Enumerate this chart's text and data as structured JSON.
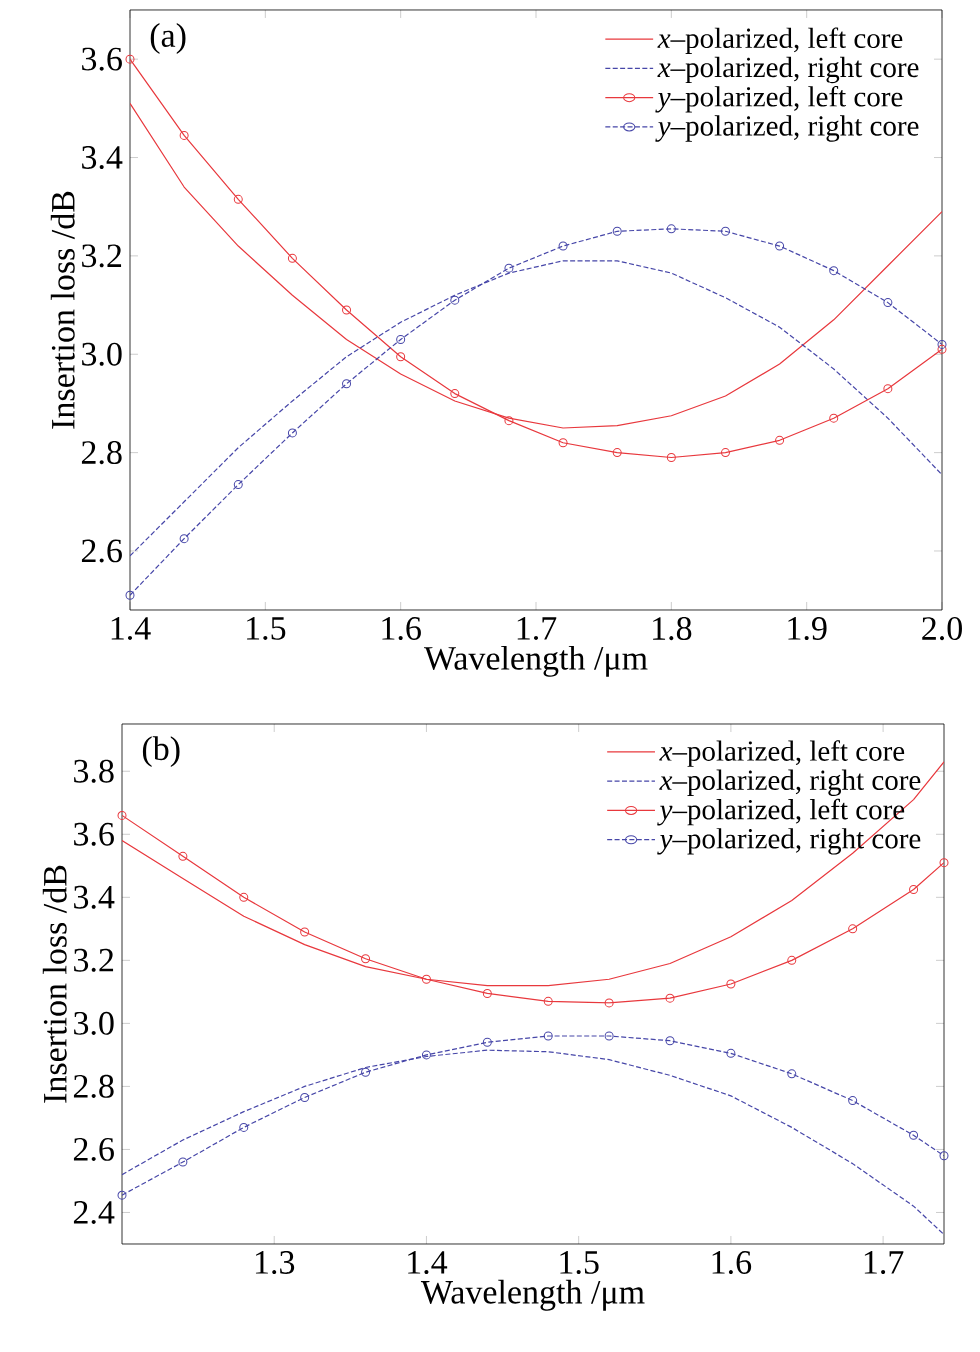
{
  "chart_data": [
    {
      "type": "line",
      "annotations": [
        "(a)"
      ],
      "xlabel": "Wavelength /μm",
      "ylabel": "Insertion loss /dB",
      "xlim": [
        1.4,
        2.0
      ],
      "ylim": [
        2.48,
        3.7
      ],
      "xticks": [
        1.4,
        1.5,
        1.6,
        1.7,
        1.8,
        1.9,
        {
          "value": 2,
          "label": "2.0"
        }
      ],
      "yticks": [
        2.6,
        2.8,
        {
          "value": 3,
          "label": "3.0"
        },
        3.2,
        3.4,
        3.6
      ],
      "legend": "top right",
      "grid": false,
      "x": [
        1.4,
        1.44,
        1.48,
        1.52,
        1.56,
        1.6,
        1.64,
        1.68,
        1.72,
        1.76,
        1.8,
        1.84,
        1.88,
        1.92,
        1.96,
        2.0
      ],
      "series": [
        {
          "name": "*x*–polarized, left core",
          "color": "#e8383d",
          "marker": "none",
          "line_style": "solid",
          "values": [
            3.51,
            3.34,
            3.22,
            3.12,
            3.03,
            2.96,
            2.905,
            2.87,
            2.85,
            2.855,
            2.875,
            2.915,
            2.98,
            3.07,
            3.18,
            3.29
          ]
        },
        {
          "name": "*x*–polarized, right core",
          "color": "#4646a8",
          "marker": "none",
          "line_style": "dashed",
          "values": [
            2.59,
            2.7,
            2.81,
            2.905,
            2.995,
            3.065,
            3.12,
            3.165,
            3.19,
            3.19,
            3.165,
            3.115,
            3.055,
            2.97,
            2.87,
            2.755
          ]
        },
        {
          "name": "*y*–polarized, left core",
          "color": "#e8383d",
          "marker": "circle",
          "line_style": "solid",
          "values": [
            3.6,
            3.445,
            3.315,
            3.195,
            3.09,
            2.995,
            2.92,
            2.865,
            2.82,
            2.8,
            2.79,
            2.8,
            2.825,
            2.87,
            2.93,
            3.01
          ]
        },
        {
          "name": "*y*–polarized, right core",
          "color": "#4646a8",
          "marker": "circle",
          "line_style": "dashed",
          "values": [
            2.51,
            2.625,
            2.735,
            2.84,
            2.94,
            3.03,
            3.11,
            3.175,
            3.22,
            3.25,
            3.255,
            3.25,
            3.22,
            3.17,
            3.105,
            3.02
          ]
        }
      ]
    },
    {
      "type": "line",
      "annotations": [
        "(b)"
      ],
      "xlabel": "Wavelength /μm",
      "ylabel": "Insertion loss /dB",
      "xlim": [
        1.2,
        1.74
      ],
      "ylim": [
        2.3,
        3.95
      ],
      "xticks": [
        1.3,
        1.4,
        1.5,
        1.6,
        1.7
      ],
      "yticks": [
        2.4,
        2.6,
        2.8,
        {
          "value": 3,
          "label": "3.0"
        },
        3.2,
        3.4,
        3.6,
        3.8
      ],
      "legend": "top right",
      "grid": false,
      "x": [
        1.2,
        1.24,
        1.28,
        1.32,
        1.36,
        1.4,
        1.44,
        1.48,
        1.52,
        1.56,
        1.6,
        1.64,
        1.68,
        1.72,
        1.74
      ],
      "series": [
        {
          "name": "*x*–polarized, left core",
          "color": "#e8383d",
          "marker": "none",
          "line_style": "solid",
          "values": [
            3.58,
            3.46,
            3.34,
            3.25,
            3.18,
            3.14,
            3.12,
            3.12,
            3.14,
            3.19,
            3.275,
            3.39,
            3.54,
            3.71,
            3.83
          ]
        },
        {
          "name": "*x*–polarized, right core",
          "color": "#4646a8",
          "marker": "none",
          "line_style": "dashed",
          "values": [
            2.52,
            2.63,
            2.72,
            2.8,
            2.86,
            2.895,
            2.915,
            2.91,
            2.885,
            2.835,
            2.77,
            2.67,
            2.555,
            2.42,
            2.33
          ]
        },
        {
          "name": "*y*–polarized, left core",
          "color": "#e8383d",
          "marker": "circle",
          "line_style": "solid",
          "values": [
            3.66,
            3.53,
            3.4,
            3.29,
            3.205,
            3.14,
            3.095,
            3.07,
            3.065,
            3.08,
            3.125,
            3.2,
            3.3,
            3.425,
            3.51
          ]
        },
        {
          "name": "*y*–polarized, right core",
          "color": "#4646a8",
          "marker": "circle",
          "line_style": "dashed",
          "values": [
            2.455,
            2.56,
            2.67,
            2.765,
            2.845,
            2.9,
            2.94,
            2.96,
            2.96,
            2.945,
            2.905,
            2.84,
            2.755,
            2.645,
            2.58
          ]
        }
      ]
    }
  ]
}
